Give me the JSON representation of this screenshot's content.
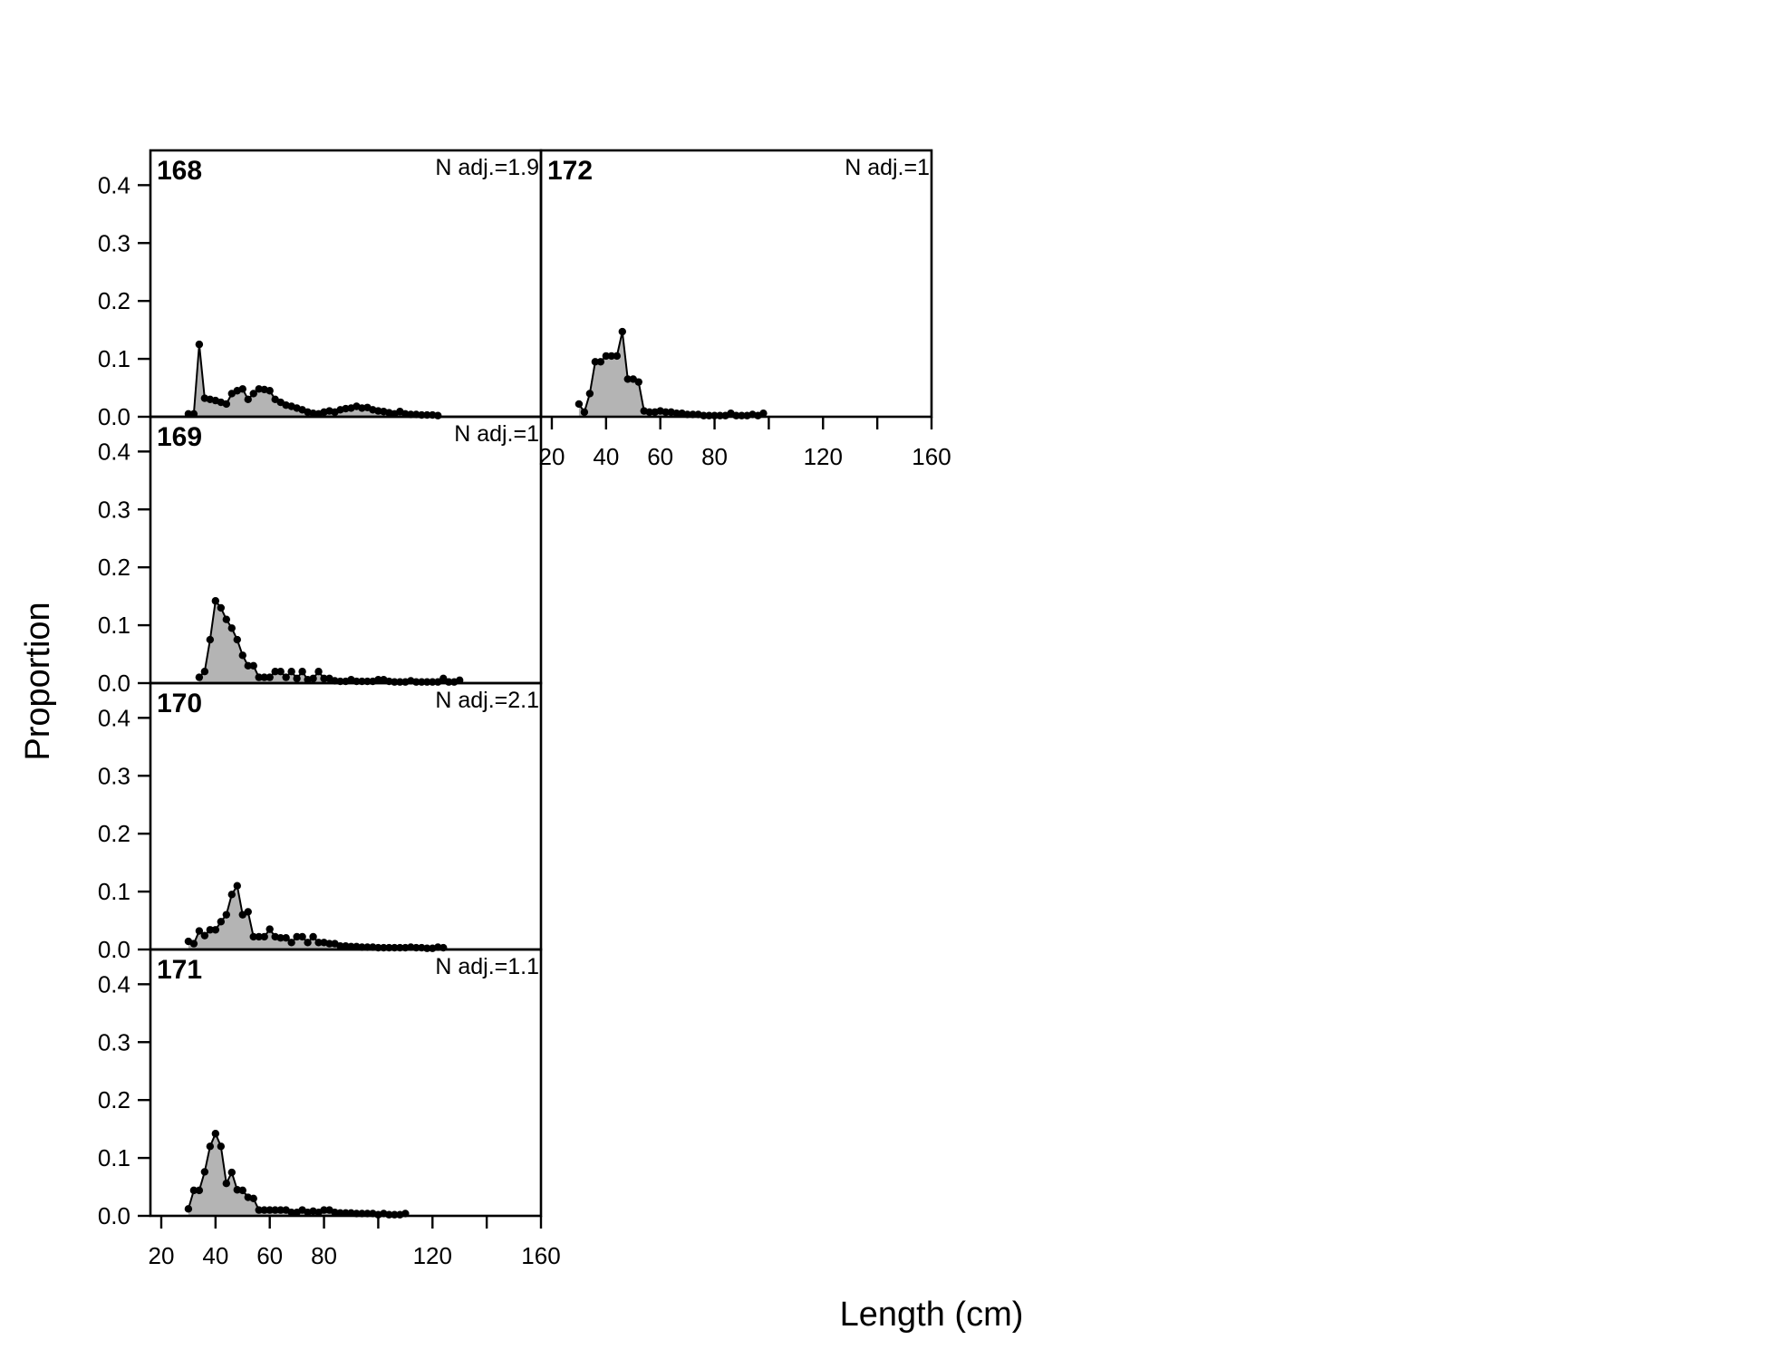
{
  "chart_data": {
    "type": "area",
    "xlabel": "Length (cm)",
    "ylabel": "Proportion",
    "xlim": [
      16,
      160
    ],
    "ylim": [
      0,
      0.46
    ],
    "x_ticks": [
      20,
      40,
      60,
      80,
      100,
      120,
      140,
      160
    ],
    "x_tick_labels": [
      "20",
      "40",
      "60",
      "80",
      "",
      "120",
      "",
      "160"
    ],
    "y_ticks": [
      0,
      0.1,
      0.2,
      0.3,
      0.4
    ],
    "y_tick_labels": [
      "0.0",
      "0.1",
      "0.2",
      "0.3",
      "0.4"
    ],
    "fill_color": "#b4b4b4",
    "line_color": "#000000",
    "panels": [
      {
        "id": "168",
        "label": "168",
        "n_adj": "N adj.=1.9",
        "points": [
          [
            30,
            0.005
          ],
          [
            32,
            0.005
          ],
          [
            34,
            0.125
          ],
          [
            36,
            0.032
          ],
          [
            38,
            0.03
          ],
          [
            40,
            0.028
          ],
          [
            42,
            0.025
          ],
          [
            44,
            0.022
          ],
          [
            46,
            0.04
          ],
          [
            48,
            0.045
          ],
          [
            50,
            0.048
          ],
          [
            52,
            0.03
          ],
          [
            54,
            0.04
          ],
          [
            56,
            0.048
          ],
          [
            58,
            0.047
          ],
          [
            60,
            0.045
          ],
          [
            62,
            0.03
          ],
          [
            64,
            0.025
          ],
          [
            66,
            0.02
          ],
          [
            68,
            0.018
          ],
          [
            70,
            0.015
          ],
          [
            72,
            0.012
          ],
          [
            74,
            0.008
          ],
          [
            76,
            0.006
          ],
          [
            78,
            0.005
          ],
          [
            80,
            0.008
          ],
          [
            82,
            0.01
          ],
          [
            84,
            0.008
          ],
          [
            86,
            0.012
          ],
          [
            88,
            0.014
          ],
          [
            90,
            0.015
          ],
          [
            92,
            0.018
          ],
          [
            94,
            0.015
          ],
          [
            96,
            0.016
          ],
          [
            98,
            0.012
          ],
          [
            100,
            0.01
          ],
          [
            102,
            0.009
          ],
          [
            104,
            0.007
          ],
          [
            106,
            0.005
          ],
          [
            108,
            0.009
          ],
          [
            110,
            0.005
          ],
          [
            112,
            0.004
          ],
          [
            114,
            0.004
          ],
          [
            116,
            0.003
          ],
          [
            118,
            0.003
          ],
          [
            120,
            0.003
          ],
          [
            122,
            0.002
          ]
        ]
      },
      {
        "id": "169",
        "label": "169",
        "n_adj": "N adj.=1",
        "points": [
          [
            34,
            0.01
          ],
          [
            36,
            0.02
          ],
          [
            38,
            0.075
          ],
          [
            40,
            0.142
          ],
          [
            42,
            0.13
          ],
          [
            44,
            0.11
          ],
          [
            46,
            0.095
          ],
          [
            48,
            0.075
          ],
          [
            50,
            0.048
          ],
          [
            52,
            0.03
          ],
          [
            54,
            0.03
          ],
          [
            56,
            0.01
          ],
          [
            58,
            0.01
          ],
          [
            60,
            0.01
          ],
          [
            62,
            0.02
          ],
          [
            64,
            0.02
          ],
          [
            66,
            0.01
          ],
          [
            68,
            0.02
          ],
          [
            70,
            0.008
          ],
          [
            72,
            0.02
          ],
          [
            74,
            0.006
          ],
          [
            76,
            0.008
          ],
          [
            78,
            0.02
          ],
          [
            80,
            0.008
          ],
          [
            82,
            0.008
          ],
          [
            84,
            0.004
          ],
          [
            86,
            0.003
          ],
          [
            88,
            0.003
          ],
          [
            90,
            0.006
          ],
          [
            92,
            0.003
          ],
          [
            94,
            0.003
          ],
          [
            96,
            0.003
          ],
          [
            98,
            0.003
          ],
          [
            100,
            0.006
          ],
          [
            102,
            0.006
          ],
          [
            104,
            0.003
          ],
          [
            106,
            0.002
          ],
          [
            108,
            0.002
          ],
          [
            110,
            0.002
          ],
          [
            112,
            0.004
          ],
          [
            114,
            0.002
          ],
          [
            116,
            0.002
          ],
          [
            118,
            0.002
          ],
          [
            120,
            0.002
          ],
          [
            122,
            0.002
          ],
          [
            124,
            0.008
          ],
          [
            126,
            0.002
          ],
          [
            128,
            0.002
          ],
          [
            130,
            0.005
          ]
        ]
      },
      {
        "id": "170",
        "label": "170",
        "n_adj": "N adj.=2.1",
        "points": [
          [
            30,
            0.014
          ],
          [
            32,
            0.01
          ],
          [
            34,
            0.032
          ],
          [
            36,
            0.024
          ],
          [
            38,
            0.034
          ],
          [
            40,
            0.034
          ],
          [
            42,
            0.048
          ],
          [
            44,
            0.06
          ],
          [
            46,
            0.095
          ],
          [
            48,
            0.11
          ],
          [
            50,
            0.06
          ],
          [
            52,
            0.065
          ],
          [
            54,
            0.022
          ],
          [
            56,
            0.022
          ],
          [
            58,
            0.022
          ],
          [
            60,
            0.035
          ],
          [
            62,
            0.022
          ],
          [
            64,
            0.02
          ],
          [
            66,
            0.02
          ],
          [
            68,
            0.012
          ],
          [
            70,
            0.022
          ],
          [
            72,
            0.022
          ],
          [
            74,
            0.012
          ],
          [
            76,
            0.022
          ],
          [
            78,
            0.012
          ],
          [
            80,
            0.012
          ],
          [
            82,
            0.01
          ],
          [
            84,
            0.01
          ],
          [
            86,
            0.006
          ],
          [
            88,
            0.006
          ],
          [
            90,
            0.005
          ],
          [
            92,
            0.005
          ],
          [
            94,
            0.004
          ],
          [
            96,
            0.004
          ],
          [
            98,
            0.004
          ],
          [
            100,
            0.003
          ],
          [
            102,
            0.003
          ],
          [
            104,
            0.003
          ],
          [
            106,
            0.003
          ],
          [
            108,
            0.003
          ],
          [
            110,
            0.003
          ],
          [
            112,
            0.004
          ],
          [
            114,
            0.003
          ],
          [
            116,
            0.003
          ],
          [
            118,
            0.002
          ],
          [
            120,
            0.002
          ],
          [
            122,
            0.004
          ],
          [
            124,
            0.003
          ]
        ]
      },
      {
        "id": "171",
        "label": "171",
        "n_adj": "N adj.=1.1",
        "points": [
          [
            30,
            0.012
          ],
          [
            32,
            0.044
          ],
          [
            34,
            0.044
          ],
          [
            36,
            0.076
          ],
          [
            38,
            0.12
          ],
          [
            40,
            0.142
          ],
          [
            42,
            0.12
          ],
          [
            44,
            0.056
          ],
          [
            46,
            0.075
          ],
          [
            48,
            0.045
          ],
          [
            50,
            0.044
          ],
          [
            52,
            0.032
          ],
          [
            54,
            0.03
          ],
          [
            56,
            0.01
          ],
          [
            58,
            0.01
          ],
          [
            60,
            0.01
          ],
          [
            62,
            0.01
          ],
          [
            64,
            0.01
          ],
          [
            66,
            0.01
          ],
          [
            68,
            0.006
          ],
          [
            70,
            0.006
          ],
          [
            72,
            0.01
          ],
          [
            74,
            0.006
          ],
          [
            76,
            0.008
          ],
          [
            78,
            0.006
          ],
          [
            80,
            0.01
          ],
          [
            82,
            0.01
          ],
          [
            84,
            0.006
          ],
          [
            86,
            0.005
          ],
          [
            88,
            0.005
          ],
          [
            90,
            0.005
          ],
          [
            92,
            0.004
          ],
          [
            94,
            0.004
          ],
          [
            96,
            0.004
          ],
          [
            98,
            0.004
          ],
          [
            100,
            0.002
          ],
          [
            102,
            0.004
          ],
          [
            104,
            0.002
          ],
          [
            106,
            0.002
          ],
          [
            108,
            0.002
          ],
          [
            110,
            0.004
          ]
        ]
      },
      {
        "id": "172",
        "label": "172",
        "n_adj": "N adj.=1",
        "points": [
          [
            30,
            0.022
          ],
          [
            32,
            0.008
          ],
          [
            34,
            0.04
          ],
          [
            36,
            0.095
          ],
          [
            38,
            0.095
          ],
          [
            40,
            0.105
          ],
          [
            42,
            0.105
          ],
          [
            44,
            0.105
          ],
          [
            46,
            0.147
          ],
          [
            48,
            0.065
          ],
          [
            50,
            0.065
          ],
          [
            52,
            0.06
          ],
          [
            54,
            0.01
          ],
          [
            56,
            0.008
          ],
          [
            58,
            0.008
          ],
          [
            60,
            0.01
          ],
          [
            62,
            0.008
          ],
          [
            64,
            0.008
          ],
          [
            66,
            0.006
          ],
          [
            68,
            0.006
          ],
          [
            70,
            0.004
          ],
          [
            72,
            0.004
          ],
          [
            74,
            0.004
          ],
          [
            76,
            0.002
          ],
          [
            78,
            0.002
          ],
          [
            80,
            0.002
          ],
          [
            82,
            0.002
          ],
          [
            84,
            0.002
          ],
          [
            86,
            0.006
          ],
          [
            88,
            0.002
          ],
          [
            90,
            0.002
          ],
          [
            92,
            0.002
          ],
          [
            94,
            0.004
          ],
          [
            96,
            0.002
          ],
          [
            98,
            0.006
          ]
        ]
      }
    ]
  }
}
